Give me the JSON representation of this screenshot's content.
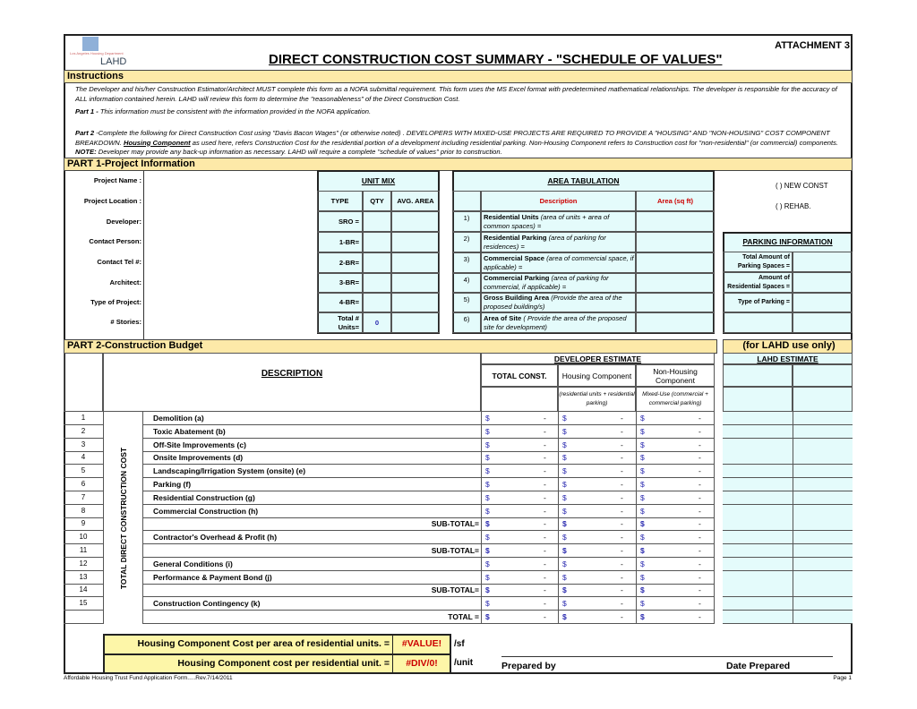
{
  "header": {
    "logo_text": "LAHD",
    "logo_subtext": "Los Angeles Housing Department",
    "attachment": "ATTACHMENT 3",
    "title": "DIRECT CONSTRUCTION COST SUMMARY - \"SCHEDULE OF VALUES\""
  },
  "instructions": {
    "heading": "Instructions",
    "p1": "The Developer and his/her Construction Estimator/Architect MUST complete this form as a NOFA submittal requirement. This form uses the MS Excel format with predetermined mathematical relationships.  The developer is responsible for the accuracy of ALL information contained herein.  LAHD will review this form to determine the \"reasonableness\" of the Direct Construction Cost.",
    "part1_label": "Part 1 - ",
    "part1": "This information must be consistent with the information provided in the NOFA application.",
    "part2_label": "Part 2 ",
    "part2a": "-Complete the following for Direct Construction Cost using \"Davis Bacon Wages\" (or otherwise noted) . DEVELOPERS WITH MIXED-USE PROJECTS ARE REQUIRED TO PROVIDE A \"HOUSING\" AND \"NON-HOUSING\" COST COMPONENT BREAKDOWN.  ",
    "housing_component": "Housing Component",
    "part2b": "  as used here, refers Construction Cost for the residential portion of a development including residential parking. Non-Housing Component refers to Construction cost for \"non-residential\" (or commercial) components.  ",
    "note_label": "NOTE:",
    "part2c": " Developer may provide any back-up information as necessary.  LAHD will require a complete \"schedule of values\" prior to construction."
  },
  "part1": {
    "heading": "PART 1-Project Information",
    "labels": [
      "Project Name :",
      "Project Location :",
      "Developer:",
      "Contact Person:",
      "Contact Tel #:",
      "Architect:",
      "Type of Project:",
      "# Stories:"
    ],
    "unit_mix": {
      "title": "UNIT MIX",
      "cols": [
        "TYPE",
        "QTY",
        "AVG. AREA"
      ],
      "types": [
        "SRO =",
        "1-BR=",
        "2-BR=",
        "3-BR=",
        "4-BR="
      ],
      "total_label": "Total # Units=",
      "total_value": "0"
    },
    "area": {
      "title": "AREA TABULATION",
      "cols": [
        "Description",
        "Area (sq ft)"
      ],
      "items": [
        {
          "n": "1)",
          "b": "Residential Units",
          "i": " (area of units + area of common spaces) ="
        },
        {
          "n": "2)",
          "b": "Residential Parking",
          "i": " (area of parking for residences) ="
        },
        {
          "n": "3)",
          "b": "Commercial Space",
          "i": " (area of commercial space, if applicable) ="
        },
        {
          "n": "4)",
          "b": "Commercial Parking",
          "i": " (area of parking for commercial, if applicable) ="
        },
        {
          "n": "5)",
          "b": "Gross Building Area",
          "i": " (Provide the area of the proposed building/s)"
        },
        {
          "n": "6)",
          "b": "Area of Site",
          "i": " ( Provide the area of the proposed site for development)"
        }
      ]
    },
    "new_const": "(    )  NEW CONST",
    "rehab": "(    )  REHAB.",
    "parking": {
      "title": "PARKING INFORMATION",
      "labels": [
        "Total Amount of Parking Spaces =",
        "Amount of Residential Spaces =",
        "Type of Parking ="
      ]
    }
  },
  "part2": {
    "heading": "PART 2-Construction Budget",
    "lahd_heading": "(for LAHD use only)",
    "lahd_estimate": "LAHD ESTIMATE",
    "developer_estimate": "DEVELOPER ESTIMATE",
    "description": "DESCRIPTION",
    "side_label": "TOTAL DIRECT CONSTRUCTION COST",
    "cols": [
      "TOTAL CONST.",
      "Housing Component",
      "Non-Housing Component"
    ],
    "col_notes": [
      "",
      "(residential units + residential parking)",
      "Mixed-Use (commercial + commercial parking)"
    ],
    "currency": "$",
    "dash": "-",
    "rows": [
      {
        "n": "1",
        "d": "Demolition (a)"
      },
      {
        "n": "2",
        "d": "Toxic Abatement (b)"
      },
      {
        "n": "3",
        "d": "Off-Site Improvements (c)"
      },
      {
        "n": "4",
        "d": "Onsite Improvements (d)"
      },
      {
        "n": "5",
        "d": "Landscaping/Irrigation System (onsite) (e)"
      },
      {
        "n": "6",
        "d": "Parking (f)"
      },
      {
        "n": "7",
        "d": "Residential Construction (g)"
      },
      {
        "n": "8",
        "d": "Commercial Construction (h)"
      },
      {
        "n": "9",
        "d": "SUB-TOTAL=",
        "t": 1
      },
      {
        "n": "10",
        "d": "Contractor's Overhead & Profit (h)"
      },
      {
        "n": "11",
        "d": "SUB-TOTAL=",
        "t": 1
      },
      {
        "n": "12",
        "d": "General Conditions (i)"
      },
      {
        "n": "13",
        "d": "Performance & Payment Bond (j)"
      },
      {
        "n": "14",
        "d": "SUB-TOTAL=",
        "t": 1
      },
      {
        "n": "15",
        "d": "Construction Contingency (k)"
      },
      {
        "n": "",
        "d": "TOTAL =",
        "t": 1
      }
    ]
  },
  "summary": {
    "row1_label": "Housing Component Cost per area of residential units. =",
    "row1_value": "#VALUE!",
    "row1_unit": "/sf",
    "row2_label": "Housing Component cost per residential unit. =",
    "row2_value": "#DIV/0!",
    "row2_unit": "/unit",
    "prepared_by": "Prepared by",
    "date_prepared": "Date Prepared"
  },
  "footer": {
    "left": "Affordable Housing Trust Fund Application Form.....Rev.7/14/2011",
    "right": "Page 1"
  },
  "colors": {
    "bar": "#fde9a8",
    "cyan": "#e4fbfb",
    "error": "#cc0000",
    "money": "#2a2ab0"
  }
}
